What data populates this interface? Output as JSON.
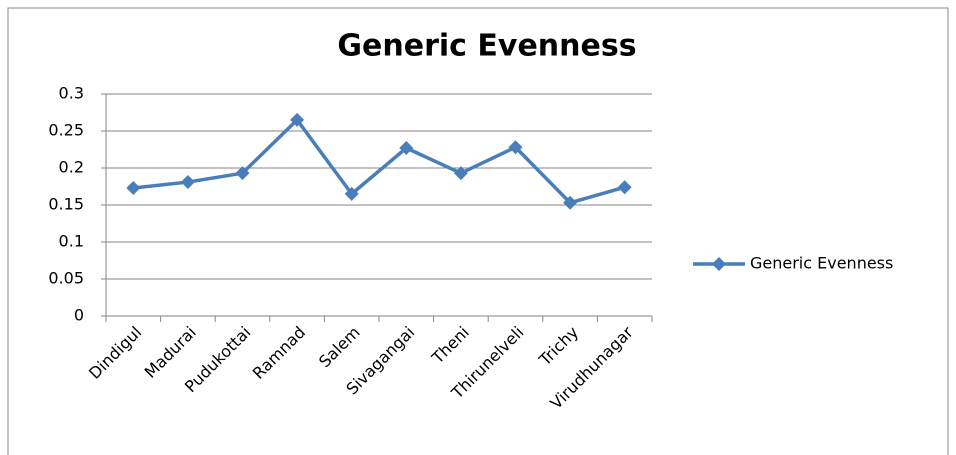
{
  "chart_data": {
    "type": "line",
    "title": "Generic Evenness",
    "categories": [
      "Dindigul",
      "Madurai",
      "Pudukottai",
      "Ramnad",
      "Salem",
      "Sivagangai",
      "Theni",
      "Thirunelveli",
      "Trichy",
      "Virudhunagar"
    ],
    "series": [
      {
        "name": "Generic Evenness",
        "color": "#4a7ebb",
        "values": [
          0.173,
          0.181,
          0.193,
          0.265,
          0.165,
          0.227,
          0.193,
          0.228,
          0.153,
          0.174
        ]
      }
    ],
    "ylim": [
      0,
      0.3
    ],
    "yticks": [
      0,
      0.05,
      0.1,
      0.15,
      0.2,
      0.25,
      0.3
    ],
    "grid": true,
    "legend": "right"
  }
}
